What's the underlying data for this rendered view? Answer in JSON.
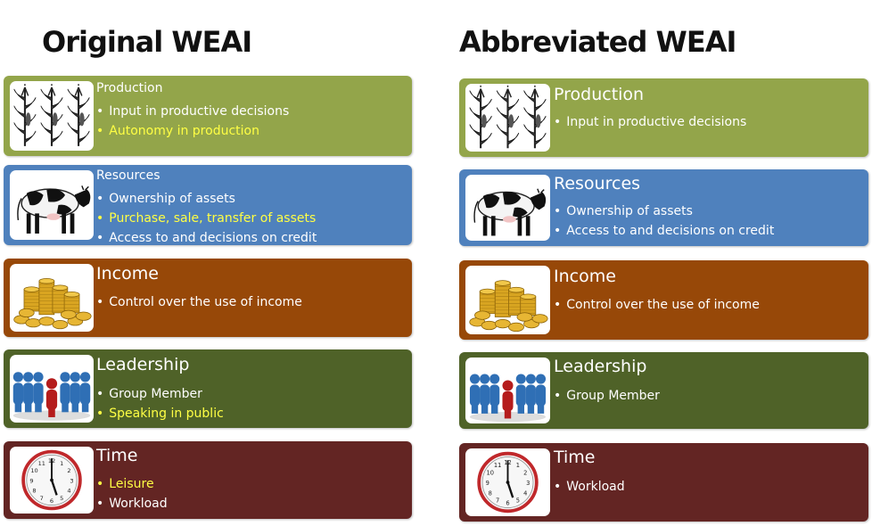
{
  "colors": {
    "production": "#93a54a",
    "resources": "#4f81bd",
    "income": "#974808",
    "leadership": "#4f6228",
    "time": "#632523",
    "highlight_text": "#ffff44"
  },
  "left": {
    "title": "Original WEAI",
    "cards": [
      {
        "title": "Production",
        "icon": "corn-icon",
        "bullets": [
          {
            "text": "Input in productive decisions",
            "highlight": false
          },
          {
            "text": "Autonomy  in production",
            "highlight": true
          }
        ]
      },
      {
        "title": "Resources",
        "icon": "cow-icon",
        "bullets": [
          {
            "text": "Ownership of assets",
            "highlight": false
          },
          {
            "text": "Purchase, sale, transfer of assets",
            "highlight": true
          },
          {
            "text": "Access to and decisions on credit",
            "highlight": false
          }
        ]
      },
      {
        "title": "Income",
        "icon": "coins-icon",
        "bullets": [
          {
            "text": "Control over the use of income",
            "highlight": false
          }
        ]
      },
      {
        "title": "Leadership",
        "icon": "group-icon",
        "bullets": [
          {
            "text": "Group Member",
            "highlight": false
          },
          {
            "text": "Speaking in public",
            "highlight": true
          }
        ]
      },
      {
        "title": "Time",
        "icon": "clock-icon",
        "bullets": [
          {
            "text": "Leisure",
            "highlight": true
          },
          {
            "text": "Workload",
            "highlight": false
          }
        ]
      }
    ]
  },
  "right": {
    "title": "Abbreviated WEAI",
    "cards": [
      {
        "title": "Production",
        "icon": "corn-icon",
        "bullets": [
          {
            "text": "Input  in productive decisions",
            "highlight": false
          }
        ]
      },
      {
        "title": "Resources",
        "icon": "cow-icon",
        "bullets": [
          {
            "text": "Ownership of assets",
            "highlight": false
          },
          {
            "text": "Access to and decisions on credit",
            "highlight": false
          }
        ]
      },
      {
        "title": "Income",
        "icon": "coins-icon",
        "bullets": [
          {
            "text": "Control over the use of income",
            "highlight": false
          }
        ]
      },
      {
        "title": "Leadership",
        "icon": "group-icon",
        "bullets": [
          {
            "text": "Group Member",
            "highlight": false
          }
        ]
      },
      {
        "title": "Time",
        "icon": "clock-icon",
        "bullets": [
          {
            "text": "Workload",
            "highlight": false
          }
        ]
      }
    ]
  }
}
